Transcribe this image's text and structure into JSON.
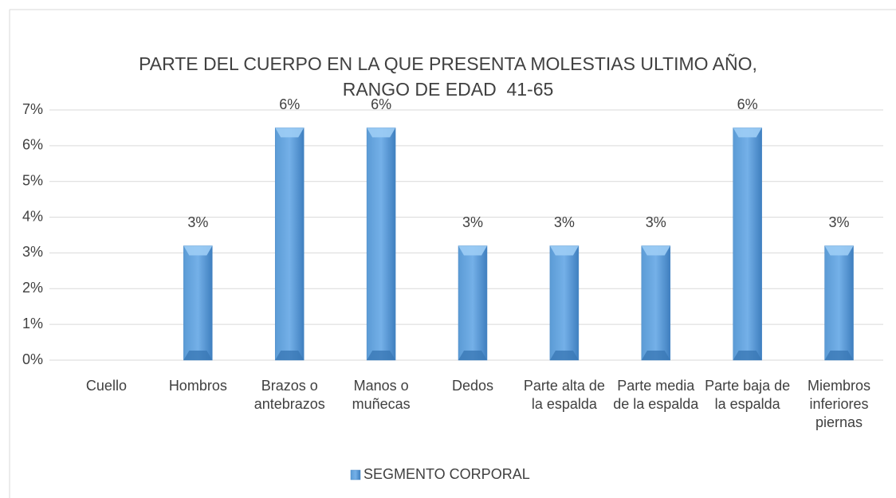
{
  "chart_data": {
    "type": "bar",
    "title": "PARTE DEL CUERPO EN LA QUE PRESENTA MOLESTIAS ULTIMO AÑO, RANGO DE EDAD  41-65",
    "categories": [
      "Cuello",
      "Hombros",
      "Brazos o antebrazos",
      "Manos o muñecas",
      "Dedos",
      "Parte alta de la espalda",
      "Parte media de la espalda",
      "Parte baja de la espalda",
      "Miembros inferiores piernas"
    ],
    "series": [
      {
        "name": "SEGMENTO CORPORAL",
        "color": "#5b9bd5",
        "values": [
          0,
          3.2,
          6.5,
          6.5,
          3.2,
          3.2,
          3.2,
          6.5,
          3.2
        ],
        "value_labels": [
          null,
          "3%",
          "6%",
          "6%",
          "3%",
          "3%",
          "3%",
          "6%",
          "3%"
        ]
      }
    ],
    "ylim": [
      0,
      7
    ],
    "yticks": [
      {
        "value": 0,
        "label": "0%"
      },
      {
        "value": 1,
        "label": "1%"
      },
      {
        "value": 2,
        "label": "2%"
      },
      {
        "value": 3,
        "label": "3%"
      },
      {
        "value": 4,
        "label": "4%"
      },
      {
        "value": 5,
        "label": "5%"
      },
      {
        "value": 6,
        "label": "6%"
      },
      {
        "value": 7,
        "label": "7%"
      }
    ],
    "grid": true,
    "legend": "bottom"
  }
}
